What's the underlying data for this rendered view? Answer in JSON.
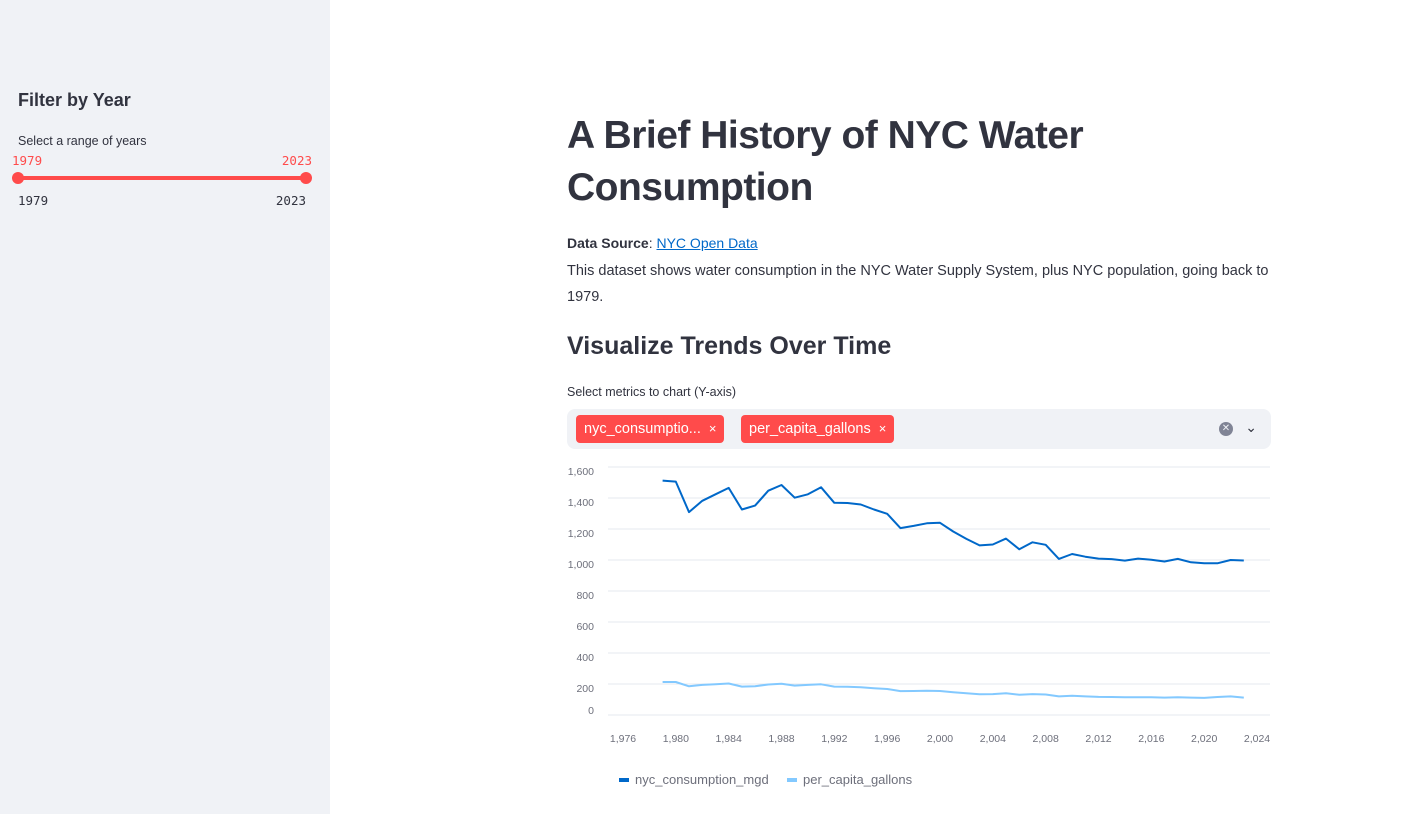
{
  "sidebar": {
    "title": "Filter by Year",
    "slider": {
      "label": "Select a range of years",
      "min_value": "1979",
      "max_value": "2023",
      "range_min": "1979",
      "range_max": "2023",
      "accent": "#ff4b4b"
    }
  },
  "main": {
    "title": "A Brief History of NYC Water Consumption",
    "source_label": "Data Source",
    "source_sep": ": ",
    "source_link": "NYC Open Data",
    "description": "This dataset shows water consumption in the NYC Water Supply System, plus NYC population, going back to 1979.",
    "section_title": "Visualize Trends Over Time",
    "multiselect": {
      "label": "Select metrics to chart (Y-axis)",
      "chips": [
        {
          "label": "nyc_consumptio...",
          "remove": "×"
        },
        {
          "label": "per_capita_gallons",
          "remove": "×"
        }
      ],
      "clear_icon": "clear-icon",
      "chevron_icon": "chevron-down-icon"
    }
  },
  "chart_data": {
    "type": "line",
    "x_ticks": [
      "1,976",
      "1,980",
      "1,984",
      "1,988",
      "1,992",
      "1,996",
      "2,000",
      "2,004",
      "2,008",
      "2,012",
      "2,016",
      "2,020",
      "2,024"
    ],
    "y_ticks": [
      "0",
      "200",
      "400",
      "600",
      "800",
      "1,000",
      "1,200",
      "1,400",
      "1,600"
    ],
    "xlim": [
      1976,
      2024
    ],
    "ylim": [
      0,
      1600
    ],
    "grid": true,
    "legend": "bottom",
    "x": [
      1979,
      1980,
      1981,
      1982,
      1983,
      1984,
      1985,
      1986,
      1987,
      1988,
      1989,
      1990,
      1991,
      1992,
      1993,
      1994,
      1995,
      1996,
      1997,
      1998,
      1999,
      2000,
      2001,
      2002,
      2003,
      2004,
      2005,
      2006,
      2007,
      2008,
      2009,
      2010,
      2011,
      2012,
      2013,
      2014,
      2015,
      2016,
      2017,
      2018,
      2019,
      2020,
      2021,
      2022,
      2023
    ],
    "series": [
      {
        "name": "nyc_consumption_mgd",
        "color": "#0068c9",
        "values": [
          1512,
          1506,
          1309,
          1382,
          1424,
          1465,
          1326,
          1351,
          1447,
          1484,
          1402,
          1424,
          1469,
          1369,
          1368,
          1358,
          1326,
          1298,
          1206,
          1220,
          1237,
          1240,
          1184,
          1136,
          1094,
          1100,
          1138,
          1069,
          1114,
          1098,
          1007,
          1039,
          1021,
          1009,
          1006,
          996,
          1009,
          1002,
          990,
          1007,
          985,
          979,
          979,
          1000,
          997
        ]
      },
      {
        "name": "per_capita_gallons",
        "color": "#83c9ff",
        "values": [
          213,
          213,
          185,
          194,
          198,
          203,
          183,
          186,
          197,
          202,
          190,
          194,
          198,
          183,
          182,
          179,
          173,
          168,
          154,
          155,
          156,
          155,
          147,
          140,
          134,
          135,
          140,
          130,
          135,
          132,
          120,
          124,
          120,
          117,
          116,
          114,
          115,
          114,
          112,
          114,
          112,
          110,
          116,
          120,
          112
        ]
      }
    ]
  }
}
